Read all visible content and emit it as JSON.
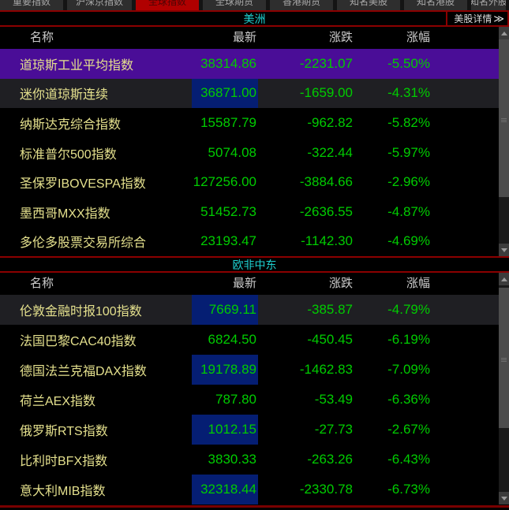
{
  "tabs": {
    "items": [
      {
        "label": "重要指数",
        "active": false,
        "clipped": false
      },
      {
        "label": "沪深京指数",
        "active": false,
        "clipped": false
      },
      {
        "label": "全球指数",
        "active": true,
        "clipped": false
      },
      {
        "label": "全球期货",
        "active": false,
        "clipped": false
      },
      {
        "label": "香港期货",
        "active": false,
        "clipped": false
      },
      {
        "label": "知名美股",
        "active": false,
        "clipped": false
      },
      {
        "label": "知名港股",
        "active": false,
        "clipped": false
      },
      {
        "label": "知名外股",
        "active": false,
        "clipped": true
      }
    ]
  },
  "panes": [
    {
      "region_title": "美洲",
      "detail_link": "美股详情",
      "detail_arrow": "≫",
      "columns": [
        "名称",
        "最新",
        "涨跌",
        "涨幅"
      ],
      "rows": [
        {
          "name": "道琼斯工业平均指数",
          "last": "38314.86",
          "change": "-2231.07",
          "pct": "-5.50%",
          "selected": true,
          "row_flash": false,
          "flash_last": false
        },
        {
          "name": "迷你道琼斯连续",
          "last": "36871.00",
          "change": "-1659.00",
          "pct": "-4.31%",
          "selected": false,
          "row_flash": true,
          "flash_last": true
        },
        {
          "name": "纳斯达克综合指数",
          "last": "15587.79",
          "change": "-962.82",
          "pct": "-5.82%",
          "selected": false,
          "row_flash": false,
          "flash_last": false
        },
        {
          "name": "标准普尔500指数",
          "last": "5074.08",
          "change": "-322.44",
          "pct": "-5.97%",
          "selected": false,
          "row_flash": false,
          "flash_last": false
        },
        {
          "name": "圣保罗IBOVESPA指数",
          "last": "127256.00",
          "change": "-3884.66",
          "pct": "-2.96%",
          "selected": false,
          "row_flash": false,
          "flash_last": false
        },
        {
          "name": "墨西哥MXX指数",
          "last": "51452.73",
          "change": "-2636.55",
          "pct": "-4.87%",
          "selected": false,
          "row_flash": false,
          "flash_last": false
        },
        {
          "name": "多伦多股票交易所综合",
          "last": "23193.47",
          "change": "-1142.30",
          "pct": "-4.69%",
          "selected": false,
          "row_flash": false,
          "flash_last": false
        }
      ]
    },
    {
      "region_title": "欧非中东",
      "columns": [
        "名称",
        "最新",
        "涨跌",
        "涨幅"
      ],
      "rows": [
        {
          "name": "伦敦金融时报100指数",
          "last": "7669.11",
          "change": "-385.87",
          "pct": "-4.79%",
          "selected": false,
          "row_flash": true,
          "flash_last": true
        },
        {
          "name": "法国巴黎CAC40指数",
          "last": "6824.50",
          "change": "-450.45",
          "pct": "-6.19%",
          "selected": false,
          "row_flash": false,
          "flash_last": false
        },
        {
          "name": "德国法兰克福DAX指数",
          "last": "19178.89",
          "change": "-1462.83",
          "pct": "-7.09%",
          "selected": false,
          "row_flash": false,
          "flash_last": true
        },
        {
          "name": "荷兰AEX指数",
          "last": "787.80",
          "change": "-53.49",
          "pct": "-6.36%",
          "selected": false,
          "row_flash": false,
          "flash_last": false
        },
        {
          "name": "俄罗斯RTS指数",
          "last": "1012.15",
          "change": "-27.73",
          "pct": "-2.67%",
          "selected": false,
          "row_flash": false,
          "flash_last": true
        },
        {
          "name": "比利时BFX指数",
          "last": "3830.33",
          "change": "-263.26",
          "pct": "-6.43%",
          "selected": false,
          "row_flash": false,
          "flash_last": false
        },
        {
          "name": "意大利MIB指数",
          "last": "32318.44",
          "change": "-2330.78",
          "pct": "-6.73%",
          "selected": false,
          "row_flash": false,
          "flash_last": true
        }
      ]
    }
  ],
  "colors": {
    "up_down_value": "#00cc00",
    "index_name": "#e4e08d",
    "region_title": "#1ed2d2",
    "selected_row": "#4a0d97",
    "flash_cell": "#051e73",
    "section_border": "#8b0000",
    "active_tab": "#b00000"
  }
}
